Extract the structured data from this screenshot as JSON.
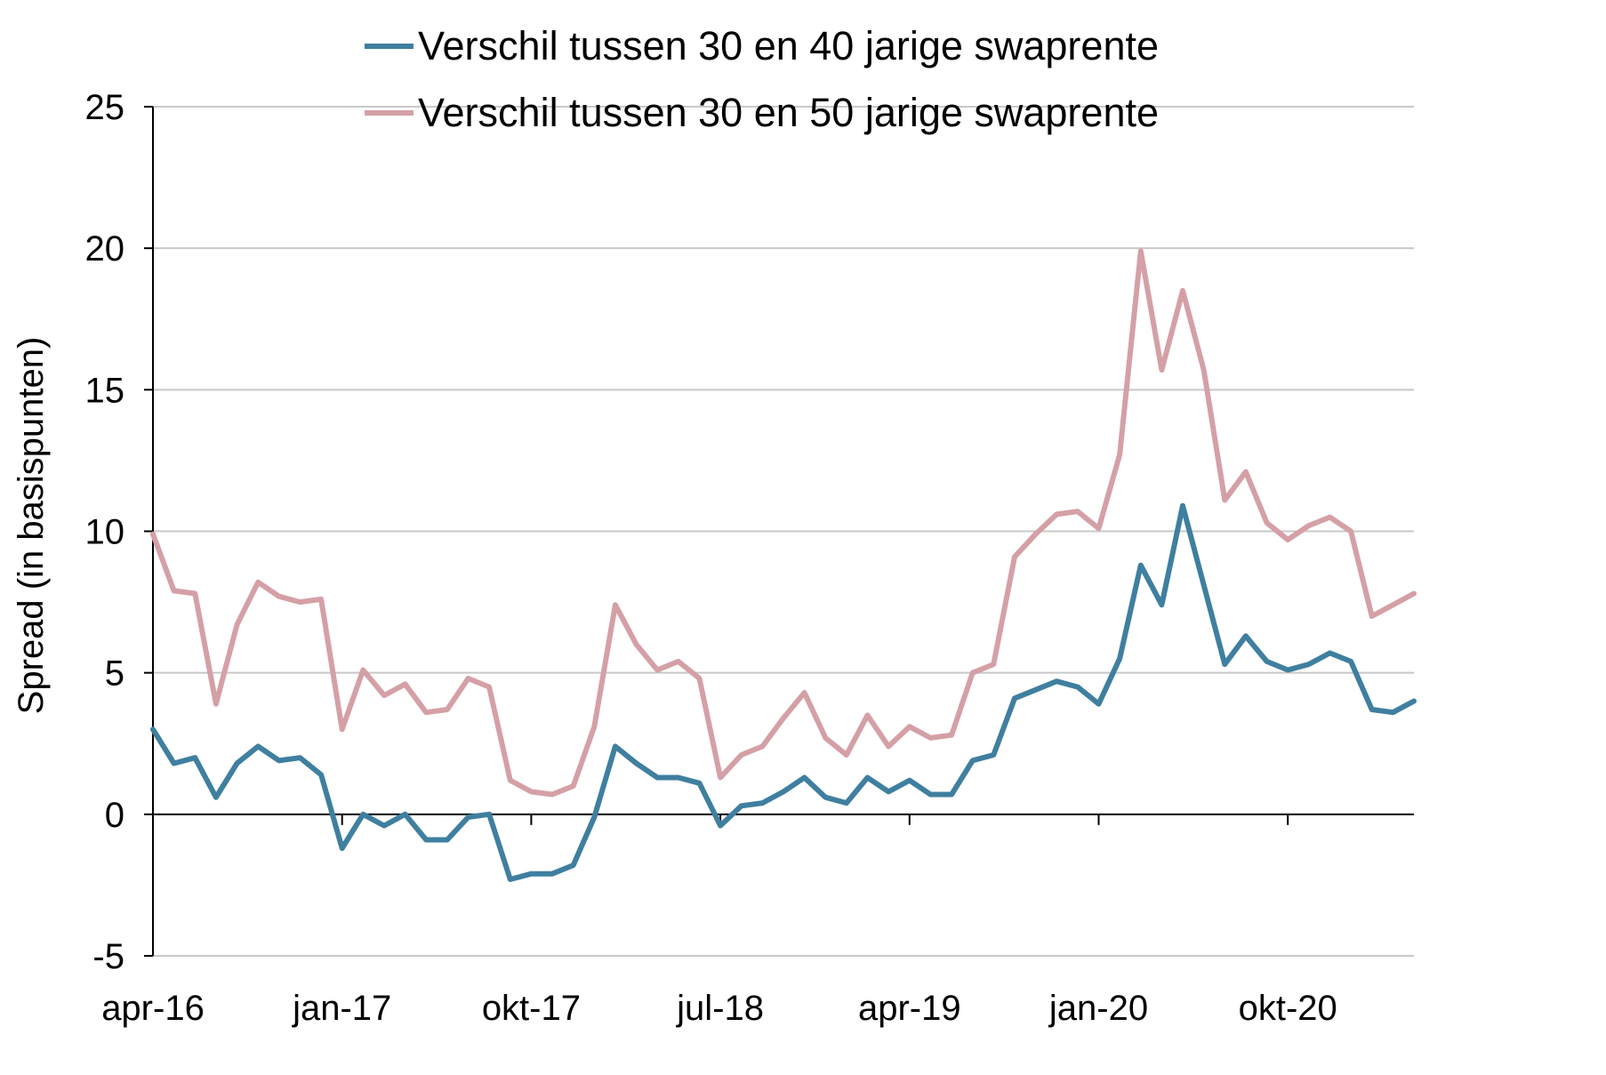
{
  "chart_data": {
    "type": "line",
    "title": "",
    "xlabel": "",
    "ylabel": "Spread (in basispunten)",
    "ylim": [
      -5,
      25
    ],
    "yticks": [
      -5,
      0,
      5,
      10,
      15,
      20,
      25
    ],
    "ytick_labels": [
      "-5",
      "0",
      "5",
      "10",
      "15",
      "20",
      "25"
    ],
    "grid": true,
    "legend_position": "top",
    "x_labels": [
      {
        "month_index": 0,
        "label": "apr-16"
      },
      {
        "month_index": 9,
        "label": "jan-17"
      },
      {
        "month_index": 18,
        "label": "okt-17"
      },
      {
        "month_index": 27,
        "label": "jul-18"
      },
      {
        "month_index": 36,
        "label": "apr-19"
      },
      {
        "month_index": 45,
        "label": "jan-20"
      },
      {
        "month_index": 54,
        "label": "okt-20"
      }
    ],
    "series": [
      {
        "name": "Verschil tussen 30 en 40 jarige swaprente",
        "color": "#3f7f9f",
        "values": [
          3.0,
          1.8,
          2.0,
          0.6,
          1.8,
          2.4,
          1.9,
          2.0,
          1.4,
          -1.2,
          0.0,
          -0.4,
          0.0,
          -0.9,
          -0.9,
          -0.1,
          0.0,
          -2.3,
          -2.1,
          -2.1,
          -1.8,
          -0.1,
          2.4,
          1.8,
          1.3,
          1.3,
          1.1,
          -0.4,
          0.3,
          0.4,
          0.8,
          1.3,
          0.6,
          0.4,
          1.3,
          0.8,
          1.2,
          0.7,
          0.7,
          1.9,
          2.1,
          4.1,
          4.4,
          4.7,
          4.5,
          3.9,
          5.5,
          8.8,
          7.4,
          10.9,
          8.1,
          5.3,
          6.3,
          5.4,
          5.1,
          5.3,
          5.7,
          5.4,
          3.7,
          3.6,
          4.0
        ]
      },
      {
        "name": "Verschil tussen 30 en 50 jarige swaprente",
        "color": "#d4a0a6",
        "values": [
          9.9,
          7.9,
          7.8,
          3.9,
          6.7,
          8.2,
          7.7,
          7.5,
          7.6,
          3.0,
          5.1,
          4.2,
          4.6,
          3.6,
          3.7,
          4.8,
          4.5,
          1.2,
          0.8,
          0.7,
          1.0,
          3.1,
          7.4,
          6.0,
          5.1,
          5.4,
          4.8,
          1.3,
          2.1,
          2.4,
          3.4,
          4.3,
          2.7,
          2.1,
          3.5,
          2.4,
          3.1,
          2.7,
          2.8,
          5.0,
          5.3,
          9.1,
          9.9,
          10.6,
          10.7,
          10.1,
          12.7,
          19.9,
          15.7,
          18.5,
          15.7,
          11.1,
          12.1,
          10.3,
          9.7,
          10.2,
          10.5,
          10.0,
          7.0,
          7.4,
          7.8
        ]
      }
    ]
  }
}
